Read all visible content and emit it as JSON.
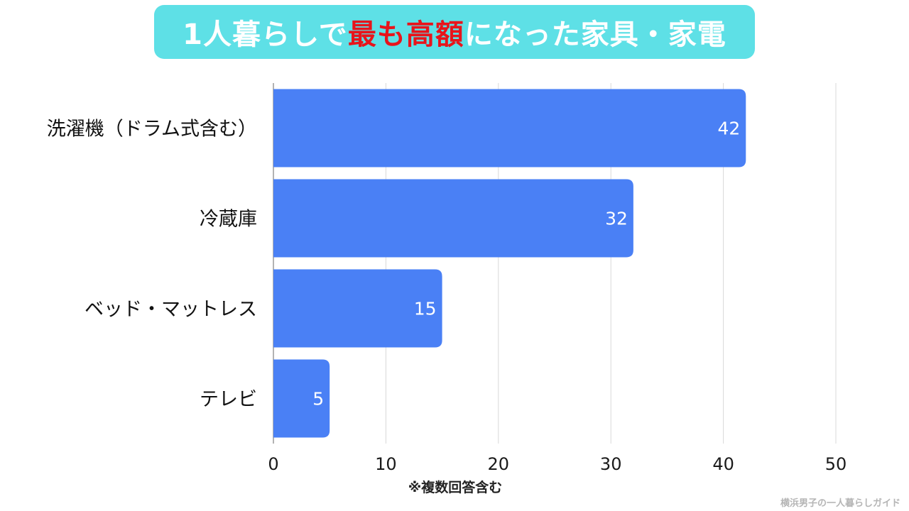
{
  "title": {
    "part1": "1人暮らしで",
    "highlight": "最も高額",
    "part2": "になった家具・家電"
  },
  "note": "※複数回答含む",
  "credit": "横浜男子の一人暮らしガイド",
  "colors": {
    "banner": "#5ee0e6",
    "highlight": "#e8141b",
    "bar": "#4a80f5",
    "grid": "#d9d9d9"
  },
  "chart_data": {
    "type": "bar",
    "orientation": "horizontal",
    "categories": [
      "洗濯機（ドラム式含む）",
      "冷蔵庫",
      "ベッド・マットレス",
      "テレビ"
    ],
    "values": [
      42,
      32,
      15,
      5
    ],
    "xlim": [
      0,
      50
    ],
    "xticks": [
      0,
      10,
      20,
      30,
      40,
      50
    ],
    "grid": true,
    "legend": "none",
    "data_labels": true
  }
}
